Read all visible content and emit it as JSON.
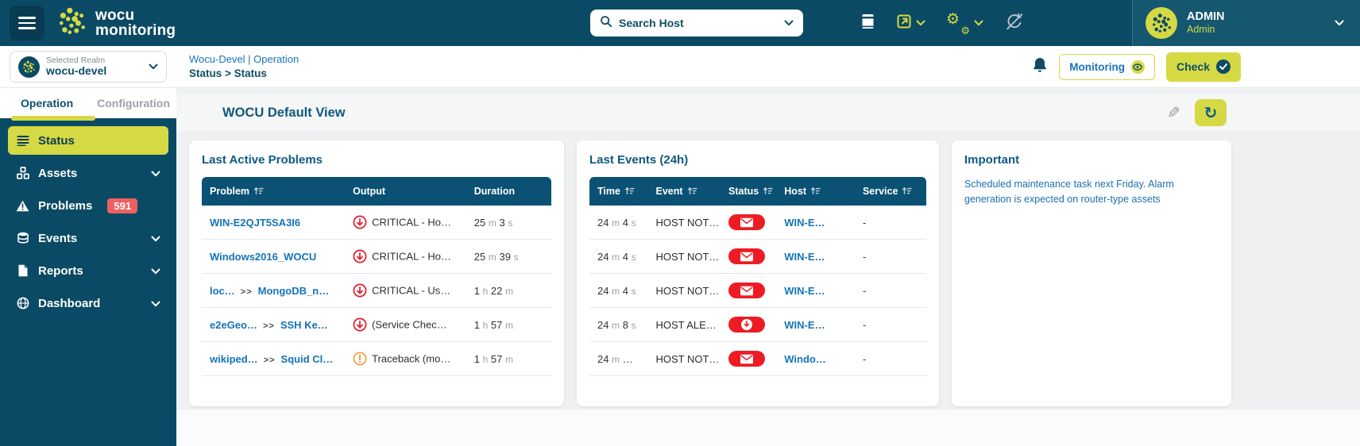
{
  "colors": {
    "topbar_bg": "#0b4a64",
    "accent_lime": "#d5d943",
    "table_header_bg": "#0a5174",
    "link_blue": "#1474b8",
    "critical_red": "#e01d2d",
    "pill_red": "#ed1c24",
    "warning_orange": "#f0a23c",
    "badge_red": "#ee6160",
    "navy_text": "#0e4e68"
  },
  "topbar": {
    "logo_line1": "wocu",
    "logo_line2": "monitoring",
    "search_placeholder": "Search Host",
    "user_name": "ADMIN",
    "user_role": "Admin"
  },
  "realm": {
    "label": "Selected Realm",
    "value": "wocu-devel"
  },
  "sidebar": {
    "tabs": [
      {
        "label": "Operation",
        "active": true
      },
      {
        "label": "Configuration",
        "active": false
      }
    ],
    "items": [
      {
        "label": "Status",
        "icon": "list",
        "active": true,
        "chevron": false,
        "badge": null
      },
      {
        "label": "Assets",
        "icon": "cubes",
        "active": false,
        "chevron": true,
        "badge": null
      },
      {
        "label": "Problems",
        "icon": "warning-triangle",
        "active": false,
        "chevron": false,
        "badge": "591"
      },
      {
        "label": "Events",
        "icon": "database",
        "active": false,
        "chevron": true,
        "badge": null
      },
      {
        "label": "Reports",
        "icon": "report",
        "active": false,
        "chevron": true,
        "badge": null
      },
      {
        "label": "Dashboard",
        "icon": "dashboard",
        "active": false,
        "chevron": true,
        "badge": null
      }
    ]
  },
  "breadcrumb": {
    "line1": "Wocu-Devel | Operation",
    "line2": "Status > Status"
  },
  "header_actions": {
    "monitoring_label": "Monitoring",
    "check_label": "Check"
  },
  "page": {
    "title": "WOCU Default View"
  },
  "panels": {
    "problems": {
      "title": "Last Active Problems",
      "columns": [
        {
          "label": "Problem",
          "sortable": true
        },
        {
          "label": "Output",
          "sortable": false
        },
        {
          "label": "Duration",
          "sortable": false
        }
      ],
      "rows": [
        {
          "host": "WIN-E2QJT5SA3I6",
          "service": null,
          "severity": "critical",
          "output": "CRITICAL - Ho…",
          "duration": "25 m 3 s"
        },
        {
          "host": "Windows2016_WOCU",
          "service": null,
          "severity": "critical",
          "output": "CRITICAL - Ho…",
          "duration": "25 m 39 s"
        },
        {
          "host": "loc…",
          "service": "MongoDB_n…",
          "severity": "critical",
          "output": "CRITICAL - Us…",
          "duration": "1 h 22 m"
        },
        {
          "host": "e2eGeo…",
          "service": "SSH Ke…",
          "severity": "critical",
          "output": "(Service Chec…",
          "duration": "1 h 57 m"
        },
        {
          "host": "wikiped…",
          "service": "Squid Cl…",
          "severity": "warning",
          "output": "Traceback (mo…",
          "duration": "1 h 57 m"
        }
      ]
    },
    "events": {
      "title": "Last Events (24h)",
      "columns": [
        {
          "label": "Time",
          "sortable": true
        },
        {
          "label": "Event",
          "sortable": true
        },
        {
          "label": "Status",
          "sortable": true
        },
        {
          "label": "Host",
          "sortable": true
        },
        {
          "label": "Service",
          "sortable": true
        }
      ],
      "rows": [
        {
          "time": "24 m 4 s",
          "event": "HOST NOT…",
          "status": "notification",
          "host": "WIN-E…",
          "service": "-"
        },
        {
          "time": "24 m 4 s",
          "event": "HOST NOT…",
          "status": "notification",
          "host": "WIN-E…",
          "service": "-"
        },
        {
          "time": "24 m 4 s",
          "event": "HOST NOT…",
          "status": "notification",
          "host": "WIN-E…",
          "service": "-"
        },
        {
          "time": "24 m 8 s",
          "event": "HOST ALE…",
          "status": "alert",
          "host": "WIN-E…",
          "service": "-"
        },
        {
          "time": "24 m …",
          "event": "HOST NOT…",
          "status": "notification",
          "host": "Windo…",
          "service": "-"
        }
      ]
    },
    "important": {
      "title": "Important",
      "body": "Scheduled maintenance task next Friday. Alarm generation is expected on router-type assets"
    }
  }
}
